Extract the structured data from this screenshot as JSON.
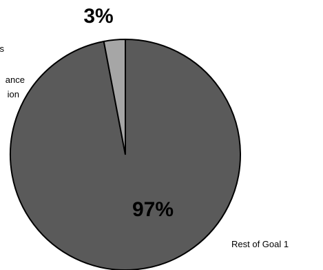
{
  "chart_data": {
    "type": "pie",
    "slices": [
      {
        "label": "Rest of Goal 1",
        "value": 97,
        "value_label": "97%",
        "color": "#5a5a5a"
      },
      {
        "label_lines": [
          "s",
          "ance",
          "ion"
        ],
        "value": 3,
        "value_label": "3%",
        "color": "#a6a6a6"
      }
    ]
  }
}
